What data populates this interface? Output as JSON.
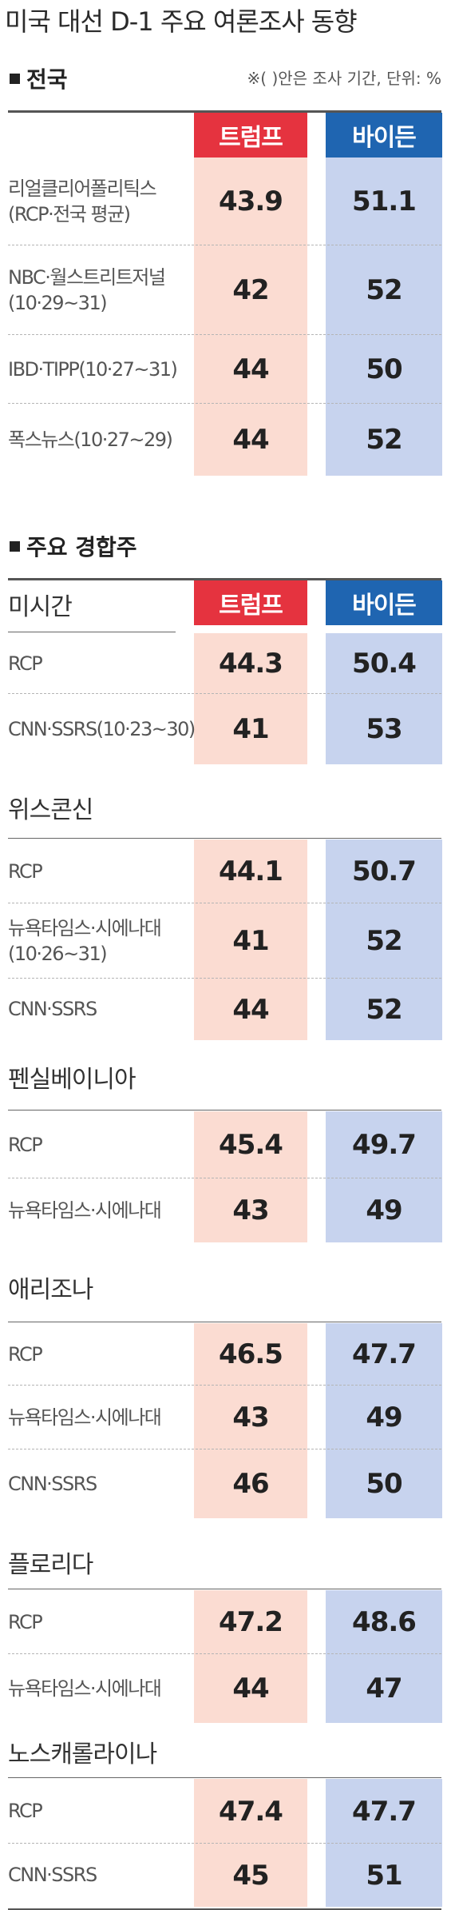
{
  "title": "미국 대선 D-1 주요 여론조사 동향",
  "national": {
    "heading": "전국",
    "note": "※( )안은 조사 기간, 단위: %",
    "trump_label": "트럼프",
    "biden_label": "바이든",
    "rows": [
      {
        "label": [
          "리얼클리어폴리틱스",
          "(RCP·전국 평균)"
        ],
        "trump": "43.9",
        "biden": "51.1"
      },
      {
        "label": [
          "NBC·월스트리트저널",
          "(10·29~31)"
        ],
        "trump": "42",
        "biden": "52"
      },
      {
        "label": [
          "IBD·TIPP(10·27~31)"
        ],
        "trump": "44",
        "biden": "50"
      },
      {
        "label": [
          "폭스뉴스(10·27~29)"
        ],
        "trump": "44",
        "biden": "52"
      }
    ]
  },
  "swing": {
    "heading": "주요 경합주",
    "trump_label": "트럼프",
    "biden_label": "바이든",
    "states": [
      {
        "name": "미시간",
        "rows": [
          {
            "label": [
              "RCP"
            ],
            "trump": "44.3",
            "biden": "50.4"
          },
          {
            "label": [
              "CNN·SSRS(10·23~30)"
            ],
            "trump": "41",
            "biden": "53"
          }
        ]
      },
      {
        "name": "위스콘신",
        "rows": [
          {
            "label": [
              "RCP"
            ],
            "trump": "44.1",
            "biden": "50.7"
          },
          {
            "label": [
              "뉴욕타임스·시에나대",
              "(10·26~31)"
            ],
            "trump": "41",
            "biden": "52"
          },
          {
            "label": [
              "CNN·SSRS"
            ],
            "trump": "44",
            "biden": "52"
          }
        ]
      },
      {
        "name": "펜실베이니아",
        "rows": [
          {
            "label": [
              "RCP"
            ],
            "trump": "45.4",
            "biden": "49.7"
          },
          {
            "label": [
              "뉴욕타임스·시에나대"
            ],
            "trump": "43",
            "biden": "49"
          }
        ]
      },
      {
        "name": "애리조나",
        "rows": [
          {
            "label": [
              "RCP"
            ],
            "trump": "46.5",
            "biden": "47.7"
          },
          {
            "label": [
              "뉴욕타임스·시에나대"
            ],
            "trump": "43",
            "biden": "49"
          },
          {
            "label": [
              "CNN·SSRS"
            ],
            "trump": "46",
            "biden": "50"
          }
        ]
      },
      {
        "name": "플로리다",
        "rows": [
          {
            "label": [
              "RCP"
            ],
            "trump": "47.2",
            "biden": "48.6"
          },
          {
            "label": [
              "뉴욕타임스·시에나대"
            ],
            "trump": "44",
            "biden": "47"
          }
        ]
      },
      {
        "name": "노스캐롤라이나",
        "rows": [
          {
            "label": [
              "RCP"
            ],
            "trump": "47.4",
            "biden": "47.7"
          },
          {
            "label": [
              "CNN·SSRS"
            ],
            "trump": "45",
            "biden": "51"
          }
        ]
      }
    ]
  },
  "colors": {
    "trump_header": "#e5333f",
    "biden_header": "#1f65b1",
    "trump_fill": "#fbdcd2",
    "biden_fill": "#c7d3ee"
  },
  "chart_data": {
    "type": "table",
    "title": "미국 대선 D-1 주요 여론조사 동향",
    "note": "※( )안은 조사 기간, 단위: %",
    "columns": [
      "트럼프",
      "바이든"
    ],
    "groups": [
      {
        "name": "전국",
        "rows": [
          {
            "poll": "리얼클리어폴리틱스(RCP·전국 평균)",
            "values": [
              43.9,
              51.1
            ]
          },
          {
            "poll": "NBC·월스트리트저널(10·29~31)",
            "values": [
              42,
              52
            ]
          },
          {
            "poll": "IBD·TIPP(10·27~31)",
            "values": [
              44,
              50
            ]
          },
          {
            "poll": "폭스뉴스(10·27~29)",
            "values": [
              44,
              52
            ]
          }
        ]
      },
      {
        "name": "미시간",
        "rows": [
          {
            "poll": "RCP",
            "values": [
              44.3,
              50.4
            ]
          },
          {
            "poll": "CNN·SSRS(10·23~30)",
            "values": [
              41,
              53
            ]
          }
        ]
      },
      {
        "name": "위스콘신",
        "rows": [
          {
            "poll": "RCP",
            "values": [
              44.1,
              50.7
            ]
          },
          {
            "poll": "뉴욕타임스·시에나대(10·26~31)",
            "values": [
              41,
              52
            ]
          },
          {
            "poll": "CNN·SSRS",
            "values": [
              44,
              52
            ]
          }
        ]
      },
      {
        "name": "펜실베이니아",
        "rows": [
          {
            "poll": "RCP",
            "values": [
              45.4,
              49.7
            ]
          },
          {
            "poll": "뉴욕타임스·시에나대",
            "values": [
              43,
              49
            ]
          }
        ]
      },
      {
        "name": "애리조나",
        "rows": [
          {
            "poll": "RCP",
            "values": [
              46.5,
              47.7
            ]
          },
          {
            "poll": "뉴욕타임스·시에나대",
            "values": [
              43,
              49
            ]
          },
          {
            "poll": "CNN·SSRS",
            "values": [
              46,
              50
            ]
          }
        ]
      },
      {
        "name": "플로리다",
        "rows": [
          {
            "poll": "RCP",
            "values": [
              47.2,
              48.6
            ]
          },
          {
            "poll": "뉴욕타임스·시에나대",
            "values": [
              44,
              47
            ]
          }
        ]
      },
      {
        "name": "노스캐롤라이나",
        "rows": [
          {
            "poll": "RCP",
            "values": [
              47.4,
              47.7
            ]
          },
          {
            "poll": "CNN·SSRS",
            "values": [
              45,
              51
            ]
          }
        ]
      }
    ]
  }
}
